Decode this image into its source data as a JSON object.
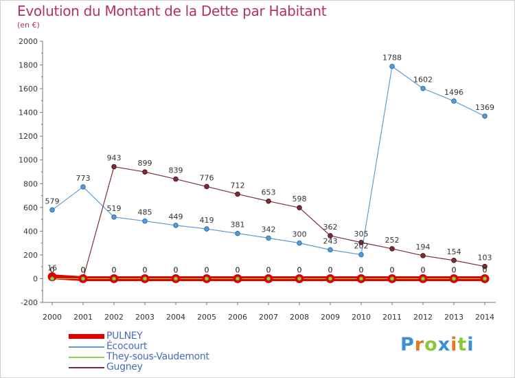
{
  "title": "Evolution du Montant de la Dette par Habitant",
  "subtitle": "(en €)",
  "logo_text": "Proxiti",
  "chart_data": {
    "type": "line",
    "title": "Evolution du Montant de la Dette par Habitant",
    "ylabel": "(en €)",
    "xlabel": "",
    "ylim": [
      -200,
      2000
    ],
    "yticks": [
      -200,
      0,
      200,
      400,
      600,
      800,
      1000,
      1200,
      1400,
      1600,
      1800,
      2000
    ],
    "x": [
      2000,
      2001,
      2002,
      2003,
      2004,
      2005,
      2006,
      2007,
      2008,
      2009,
      2010,
      2011,
      2012,
      2013,
      2014
    ],
    "grid": false,
    "legend_placement": "bottom-left",
    "series": [
      {
        "name": "PULNEY",
        "color": "#e00000",
        "values": [
          16,
          0,
          0,
          0,
          0,
          0,
          0,
          0,
          0,
          0,
          0,
          0,
          0,
          0,
          0
        ],
        "labels": [
          "16",
          "0",
          "0",
          "0",
          "0",
          "0",
          "0",
          "0",
          "0",
          "0",
          "0",
          "0",
          "0",
          "0",
          "0"
        ]
      },
      {
        "name": "Écocourt",
        "color": "#5b9bd5",
        "values": [
          579,
          773,
          519,
          485,
          449,
          419,
          381,
          342,
          300,
          243,
          202,
          1788,
          1602,
          1496,
          1369
        ],
        "labels": [
          "579",
          "773",
          "519",
          "485",
          "449",
          "419",
          "381",
          "342",
          "300",
          "243",
          "202",
          "1788",
          "1602",
          "1496",
          "1369"
        ]
      },
      {
        "name": "They-sous-Vaudemont",
        "color": "#90d050",
        "values": [
          0,
          0,
          0,
          0,
          0,
          0,
          0,
          0,
          0,
          0,
          0,
          0,
          0,
          0,
          0
        ],
        "labels": [
          "0",
          "0",
          "0",
          "0",
          "0",
          "0",
          "0",
          "0",
          "0",
          "0",
          "0",
          "0",
          "0",
          "0",
          "0"
        ]
      },
      {
        "name": "Gugney",
        "color": "#7a2e36",
        "values": [
          0,
          0,
          943,
          899,
          839,
          776,
          712,
          653,
          598,
          362,
          305,
          252,
          194,
          154,
          103
        ],
        "labels": [
          "0",
          "0",
          "943",
          "899",
          "839",
          "776",
          "712",
          "653",
          "598",
          "362",
          "305",
          "252",
          "194",
          "154",
          "103"
        ]
      }
    ]
  }
}
